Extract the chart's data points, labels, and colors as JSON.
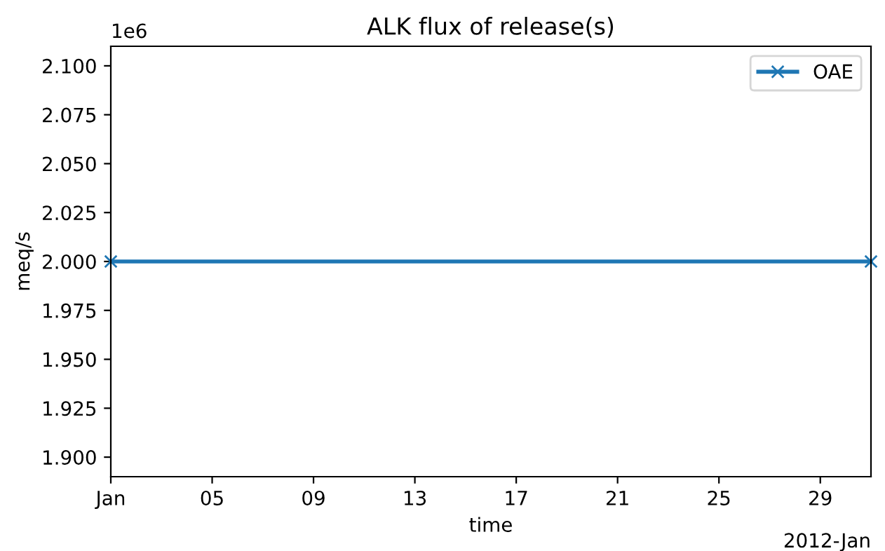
{
  "chart_data": {
    "type": "line",
    "title": "ALK flux of release(s)",
    "xlabel": "time",
    "ylabel": "meq/s",
    "x": [
      "2012-01-01",
      "2012-01-31"
    ],
    "series": [
      {
        "name": "OAE",
        "color": "#1f77b4",
        "values": [
          2.0,
          2.0
        ]
      }
    ],
    "xlim": [
      "2012-01-01",
      "2012-01-31"
    ],
    "xticks": [
      {
        "value": "2012-01-01",
        "label": "Jan"
      },
      {
        "value": "2012-01-05",
        "label": "05"
      },
      {
        "value": "2012-01-09",
        "label": "09"
      },
      {
        "value": "2012-01-13",
        "label": "13"
      },
      {
        "value": "2012-01-17",
        "label": "17"
      },
      {
        "value": "2012-01-21",
        "label": "21"
      },
      {
        "value": "2012-01-25",
        "label": "25"
      },
      {
        "value": "2012-01-29",
        "label": "29"
      }
    ],
    "ylim": [
      1.89,
      2.11
    ],
    "yticks": [
      {
        "value": 1.9,
        "label": "1.900"
      },
      {
        "value": 1.925,
        "label": "1.925"
      },
      {
        "value": 1.95,
        "label": "1.950"
      },
      {
        "value": 1.975,
        "label": "1.975"
      },
      {
        "value": 2.0,
        "label": "2.000"
      },
      {
        "value": 2.025,
        "label": "2.025"
      },
      {
        "value": 2.05,
        "label": "2.050"
      },
      {
        "value": 2.075,
        "label": "2.075"
      },
      {
        "value": 2.1,
        "label": "2.100"
      }
    ],
    "annotations": [
      "1e6",
      "2012-Jan"
    ],
    "marker": "cross",
    "line_style": "solid",
    "legend": "top right",
    "grid": false
  }
}
